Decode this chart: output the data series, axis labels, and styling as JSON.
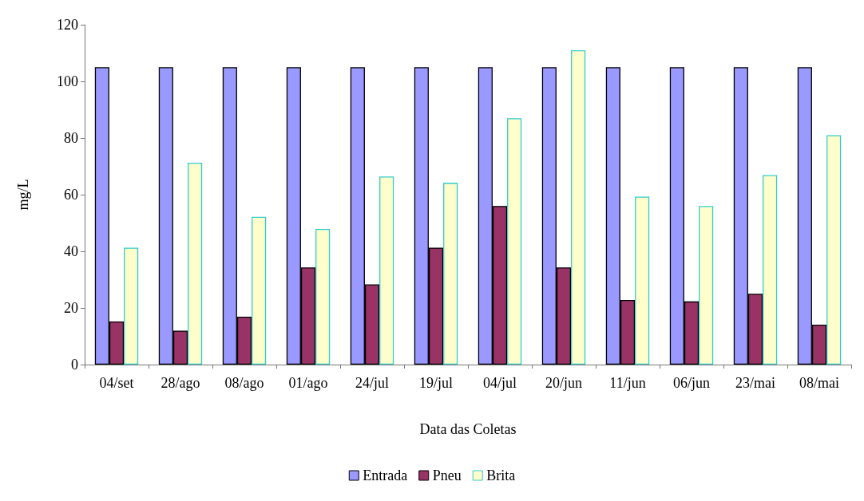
{
  "chart_data": {
    "type": "bar",
    "xlabel": "Data das Coletas",
    "ylabel": "mg/L",
    "categories": [
      "04/set",
      "28/ago",
      "08/ago",
      "01/ago",
      "24/jul",
      "19/jul",
      "04/jul",
      "20/jun",
      "11/jun",
      "06/jun",
      "23/mai",
      "08/mai"
    ],
    "series": [
      {
        "name": "Entrada",
        "color": "#9999ff",
        "values": [
          105,
          105,
          105,
          105,
          105,
          105,
          105,
          105,
          105,
          105,
          105,
          105
        ]
      },
      {
        "name": "Pneu",
        "color": "#993366",
        "values": [
          15.2,
          12,
          16.9,
          34.3,
          28.3,
          41.3,
          56,
          34.3,
          22.8,
          22.3,
          25,
          14.1
        ]
      },
      {
        "name": "Brita",
        "color": "#ffffcc",
        "values": [
          41.3,
          71.3,
          52.2,
          47.9,
          66.4,
          64.2,
          87,
          111,
          59.3,
          56,
          66.9,
          81
        ]
      }
    ],
    "ylim": [
      0,
      120
    ],
    "yticks": [
      0,
      20,
      40,
      60,
      80,
      100,
      120
    ],
    "grid": false,
    "legend": "bottom"
  }
}
